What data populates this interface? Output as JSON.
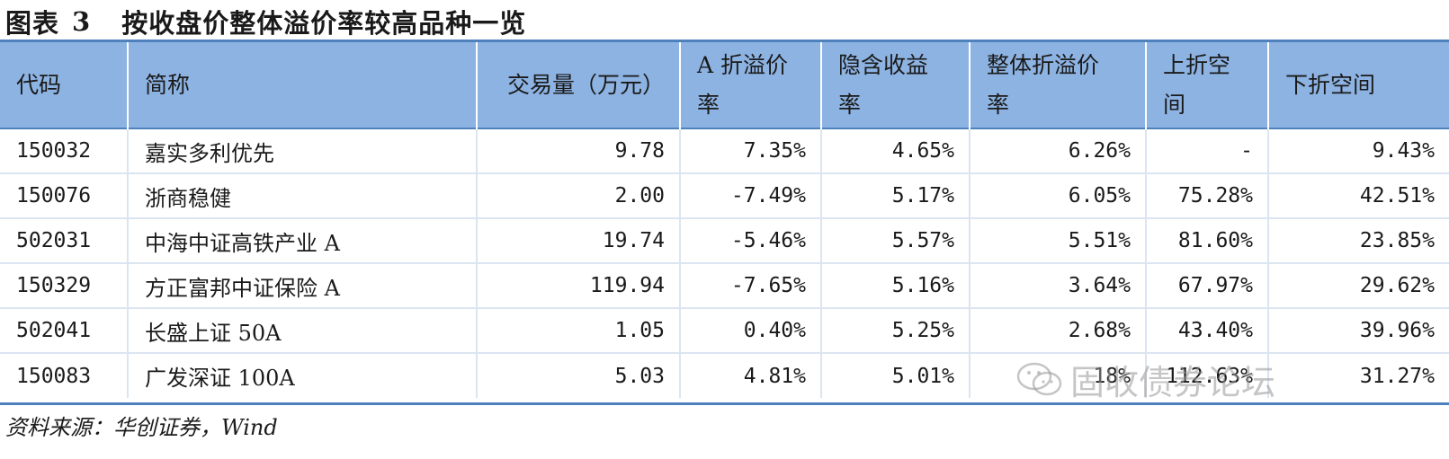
{
  "title": {
    "prefix": "图表",
    "number": "3",
    "text": "按收盘价整体溢价率较高品种一览"
  },
  "columns": [
    {
      "line1": "代码",
      "line2": ""
    },
    {
      "line1": "简称",
      "line2": ""
    },
    {
      "line1": "交易量（万元）",
      "line2": ""
    },
    {
      "line1": "A 折溢价",
      "line2": "率"
    },
    {
      "line1": "隐含收益",
      "line2": "率"
    },
    {
      "line1": "整体折溢价",
      "line2": "率"
    },
    {
      "line1": "上折空",
      "line2": "间"
    },
    {
      "line1": "下折空间",
      "line2": ""
    }
  ],
  "rows": [
    {
      "code": "150032",
      "name": "嘉实多利优先",
      "volume": "9.78",
      "a_premium": "7.35%",
      "implied_yield": "4.65%",
      "overall_premium": "6.26%",
      "up_space": "-",
      "down_space": "9.43%"
    },
    {
      "code": "150076",
      "name": "浙商稳健",
      "volume": "2.00",
      "a_premium": "-7.49%",
      "implied_yield": "5.17%",
      "overall_premium": "6.05%",
      "up_space": "75.28%",
      "down_space": "42.51%"
    },
    {
      "code": "502031",
      "name": "中海中证高铁产业 A",
      "volume": "19.74",
      "a_premium": "-5.46%",
      "implied_yield": "5.57%",
      "overall_premium": "5.51%",
      "up_space": "81.60%",
      "down_space": "23.85%"
    },
    {
      "code": "150329",
      "name": "方正富邦中证保险 A",
      "volume": "119.94",
      "a_premium": "-7.65%",
      "implied_yield": "5.16%",
      "overall_premium": "3.64%",
      "up_space": "67.97%",
      "down_space": "29.62%"
    },
    {
      "code": "502041",
      "name": "长盛上证 50A",
      "volume": "1.05",
      "a_premium": "0.40%",
      "implied_yield": "5.25%",
      "overall_premium": "2.68%",
      "up_space": "43.40%",
      "down_space": "39.96%"
    },
    {
      "code": "150083",
      "name": "广发深证 100A",
      "volume": "5.03",
      "a_premium": "4.81%",
      "implied_yield": "5.01%",
      "overall_premium": "18%",
      "up_space": "112.63%",
      "down_space": "31.27%"
    }
  ],
  "source": "资料来源：华创证券，Wind",
  "watermark": "固收债券论坛",
  "colors": {
    "header_bg": "#8db3e2",
    "rule": "#4f81bd",
    "row_divider": "#dbe5f1"
  }
}
